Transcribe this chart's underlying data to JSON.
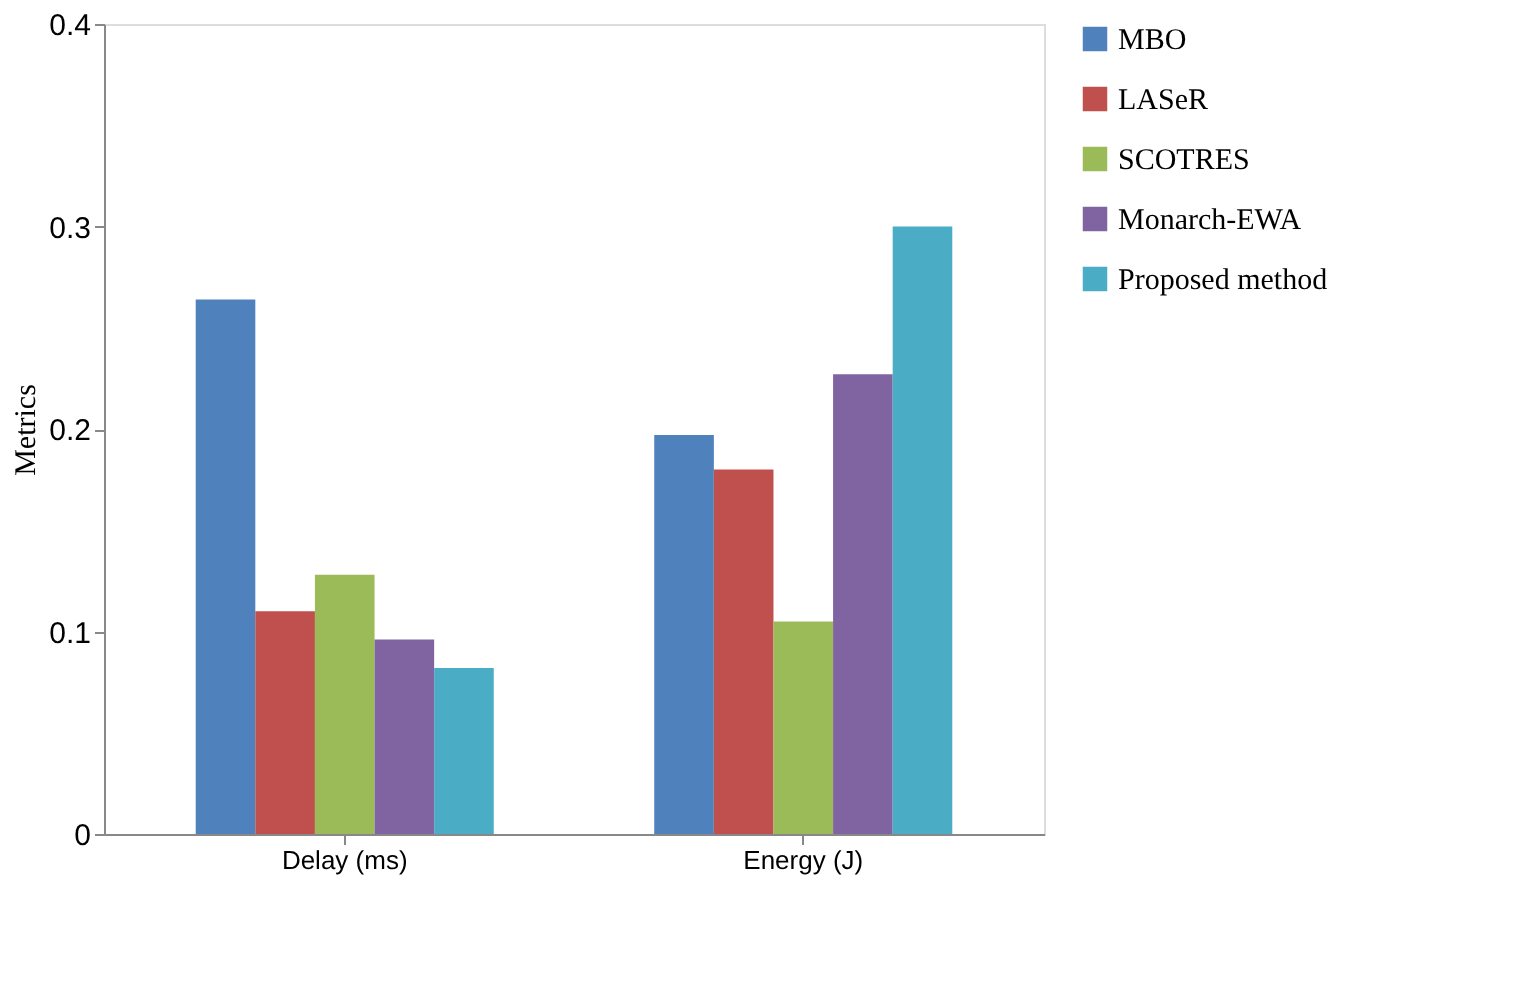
{
  "chart_data": {
    "type": "bar",
    "ylabel": "Metrics",
    "categories": [
      "Delay (ms)",
      "Energy (J)"
    ],
    "series": [
      {
        "name": "MBO",
        "color": "#4f81bd",
        "values": [
          0.264,
          0.197
        ]
      },
      {
        "name": "LASeR",
        "color": "#c0504d",
        "values": [
          0.11,
          0.18
        ]
      },
      {
        "name": "SCOTRES",
        "color": "#9bbb59",
        "values": [
          0.128,
          0.105
        ]
      },
      {
        "name": "Monarch-EWA",
        "color": "#8064a2",
        "values": [
          0.096,
          0.227
        ]
      },
      {
        "name": "Proposed method",
        "color": "#4bacc6",
        "values": [
          0.082,
          0.3
        ]
      }
    ],
    "ylim": [
      0,
      0.4
    ],
    "yticks": [
      {
        "value": 0,
        "label": "0"
      },
      0.1,
      0.2,
      0.3,
      0.4
    ],
    "grid": false,
    "legend": "right"
  }
}
